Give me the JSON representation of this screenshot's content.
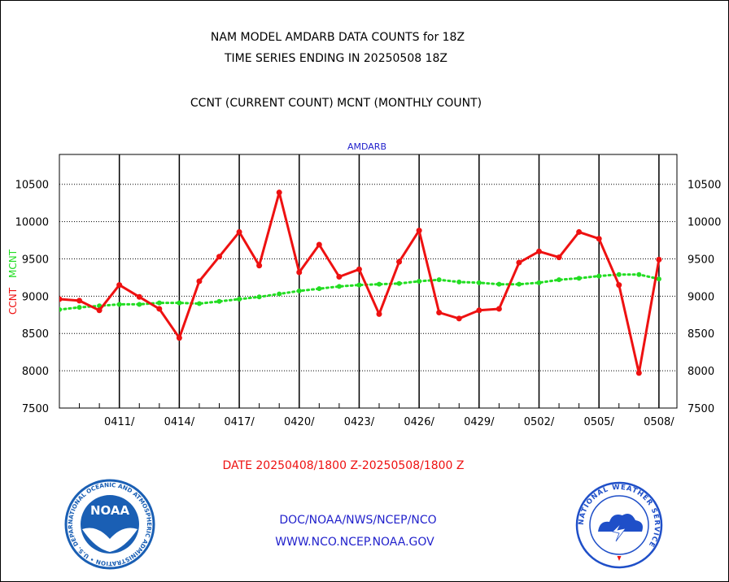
{
  "title_line1": "NAM MODEL AMDARB DATA COUNTS for 18Z",
  "title_line2": "TIME SERIES ENDING IN 20250508 18Z",
  "subtitle": "CCNT (CURRENT COUNT) MCNT (MONTHLY COUNT)",
  "footer": {
    "date_range": "DATE 20250408/1800 Z-20250508/1800 Z",
    "org": "DOC/NOAA/NWS/NCEP/NCO",
    "url": "WWW.NCO.NCEP.NOAA.GOV"
  },
  "logos": {
    "noaa": {
      "name": "NOAA",
      "ring_text": "NATIONAL OCEANIC AND ATMOSPHERIC ADMINISTRATION • U.S. DEPARTMENT OF COMMERCE •",
      "color": "#1a5fb4"
    },
    "nws": {
      "ring_text": "NATIONAL WEATHER SERVICE",
      "color": "#1f4fc8"
    }
  },
  "chart_data": {
    "type": "line",
    "plot_label": "AMDARB",
    "ylabel_left": "CCNT",
    "ylabel_right": "MCNT",
    "ylim": [
      7500,
      10900
    ],
    "yticks": [
      7500,
      8000,
      8500,
      9000,
      9500,
      10000,
      10500
    ],
    "x_tick_labels": [
      "0411/",
      "0414/",
      "0417/",
      "0420/",
      "0423/",
      "0426/",
      "0429/",
      "0502/",
      "0505/",
      "0508/"
    ],
    "x_range_days": [
      0,
      30.9
    ],
    "x_tick_days": [
      3,
      6,
      9,
      12,
      15,
      18,
      21,
      24,
      27,
      30
    ],
    "grid": true,
    "colors": {
      "ccnt": "#ee1111",
      "mcnt": "#22dd22",
      "plot_label": "#2222cc",
      "footer_blue": "#2222cc",
      "footer_red": "#ee1111"
    },
    "series": [
      {
        "name": "CCNT",
        "color": "#ee1111",
        "style": "solid",
        "x": [
          0,
          1,
          2,
          3,
          4,
          5,
          6,
          7,
          8,
          9,
          10,
          11,
          12,
          13,
          14,
          15,
          16,
          17,
          18,
          19,
          20,
          21,
          22,
          23,
          24,
          25,
          26,
          27,
          28,
          29,
          30
        ],
        "values": [
          8960,
          8940,
          8810,
          9150,
          8990,
          8830,
          8440,
          9200,
          9530,
          9860,
          9410,
          10390,
          9320,
          9690,
          9260,
          9360,
          8760,
          9460,
          9880,
          8780,
          8700,
          8810,
          8830,
          9450,
          9600,
          9520,
          9860,
          9770,
          9150,
          7970,
          9490
        ]
      },
      {
        "name": "MCNT",
        "color": "#22dd22",
        "style": "dotted",
        "x": [
          0,
          1,
          2,
          3,
          4,
          5,
          6,
          7,
          8,
          9,
          10,
          11,
          12,
          13,
          14,
          15,
          16,
          17,
          18,
          19,
          20,
          21,
          22,
          23,
          24,
          25,
          26,
          27,
          28,
          29,
          30
        ],
        "values": [
          8820,
          8850,
          8870,
          8890,
          8890,
          8910,
          8910,
          8900,
          8930,
          8960,
          8990,
          9030,
          9070,
          9100,
          9130,
          9150,
          9160,
          9170,
          9200,
          9220,
          9190,
          9180,
          9160,
          9160,
          9180,
          9220,
          9240,
          9270,
          9290,
          9290,
          9230
        ]
      }
    ]
  }
}
